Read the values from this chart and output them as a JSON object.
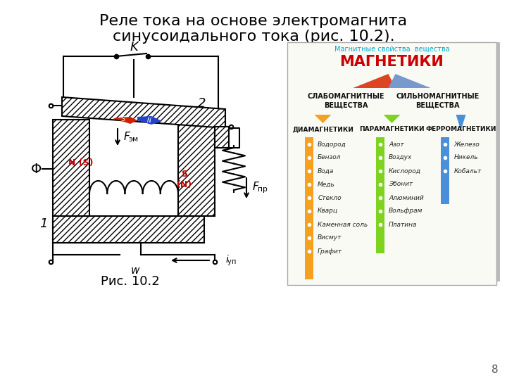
{
  "title_line1": "Реле тока на основе электромагнита",
  "title_line2": "синусоидального тока (рис. 10.2).",
  "title_fontsize": 16,
  "title_color": "#000000",
  "background_color": "#ffffff",
  "page_number": "8",
  "fig_caption": "Рис. 10.2",
  "right_panel": {
    "header": "Магнитные свойства  вещества",
    "title": "МАГНЕТИКИ",
    "header_color": "#00aacc",
    "title_color": "#cc0000",
    "slabo": "СЛАБОМАГНИТНЫЕ\nВЕЩЕСТВА",
    "silno": "СИЛЬНОМАГНИТНЫЕ\nВЕЩЕСТВА",
    "dia": "ДИАМАГНЕТИКИ",
    "para": "ПАРАМАГНЕТИКИ",
    "ferro": "ФЕРРОМАГНЕТИКИ",
    "dia_items": [
      "Водород",
      "Бензол",
      "Вода",
      "Медь",
      "Стекло",
      "Кварц",
      "Каменная соль",
      "Висмут",
      "Графит"
    ],
    "para_items": [
      "Азот",
      "Воздух",
      "Кислород",
      "Эбонит",
      "Алюминий",
      "Вольфрам",
      "Платина"
    ],
    "ferro_items": [
      "Железо",
      "Никель",
      "Кобальт"
    ],
    "dia_color": "#f5a020",
    "para_color": "#7ed321",
    "ferro_color": "#4a90d9",
    "panel_bg": "#ffffff",
    "panel_border": "#cccccc"
  },
  "diagram": {
    "lc": "#000000",
    "lw": 1.5,
    "hatch": "////",
    "hatch_lw": 0.5
  }
}
